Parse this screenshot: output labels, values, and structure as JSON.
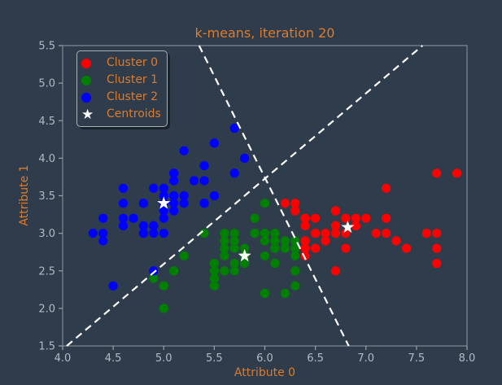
{
  "title": "k-means, iteration 20",
  "axes": {
    "x_label": "Attribute 0",
    "y_label": "Attribute 1",
    "x_ticks": [
      "4.0",
      "4.5",
      "5.0",
      "5.5",
      "6.0",
      "6.5",
      "7.0",
      "7.5",
      "8.0"
    ],
    "y_ticks": [
      "1.5",
      "2.0",
      "2.5",
      "3.0",
      "3.5",
      "4.0",
      "4.5",
      "5.0",
      "5.5"
    ]
  },
  "legend": {
    "items": [
      {
        "label": "Cluster 0",
        "marker": "dot",
        "color": "#ff0000"
      },
      {
        "label": "Cluster 1",
        "marker": "dot",
        "color": "#008000"
      },
      {
        "label": "Cluster 2",
        "marker": "dot",
        "color": "#0000ff"
      },
      {
        "label": "Centroids",
        "marker": "star",
        "color": "#ffffff"
      }
    ]
  },
  "colors": {
    "background": "#2e3c4b",
    "text_orange": "#df7b2a",
    "tick_label": "#b3bac2",
    "spine": "#7e8893",
    "tick": "#9aa3ab",
    "boundary": "#ffffff"
  },
  "chart_data": {
    "type": "scatter",
    "title": "k-means, iteration 20",
    "xlabel": "Attribute 0",
    "ylabel": "Attribute 1",
    "xlim": [
      4.0,
      8.0
    ],
    "ylim": [
      1.5,
      5.5
    ],
    "grid": false,
    "legend_position": "upper left",
    "series": [
      {
        "name": "Cluster 0",
        "marker": "dot",
        "color": "#ff0000",
        "points": [
          [
            7.0,
            3.2
          ],
          [
            6.4,
            3.2
          ],
          [
            6.9,
            3.1
          ],
          [
            6.5,
            2.8
          ],
          [
            6.3,
            3.3
          ],
          [
            6.6,
            2.9
          ],
          [
            6.7,
            3.1
          ],
          [
            6.4,
            2.9
          ],
          [
            6.6,
            3.0
          ],
          [
            6.8,
            2.8
          ],
          [
            6.7,
            3.0
          ],
          [
            6.7,
            3.1
          ],
          [
            6.3,
            3.3
          ],
          [
            7.1,
            3.0
          ],
          [
            6.5,
            3.0
          ],
          [
            7.6,
            3.0
          ],
          [
            7.3,
            2.9
          ],
          [
            6.7,
            2.5
          ],
          [
            7.2,
            3.6
          ],
          [
            6.5,
            3.2
          ],
          [
            6.4,
            2.7
          ],
          [
            6.8,
            3.0
          ],
          [
            6.4,
            3.2
          ],
          [
            6.5,
            3.0
          ],
          [
            7.7,
            3.8
          ],
          [
            7.7,
            2.6
          ],
          [
            6.9,
            3.2
          ],
          [
            7.7,
            2.8
          ],
          [
            6.7,
            3.3
          ],
          [
            7.2,
            3.2
          ],
          [
            6.4,
            2.8
          ],
          [
            7.2,
            3.0
          ],
          [
            7.4,
            2.8
          ],
          [
            7.9,
            3.8
          ],
          [
            6.4,
            2.8
          ],
          [
            7.7,
            3.0
          ],
          [
            6.3,
            3.4
          ],
          [
            6.4,
            3.1
          ],
          [
            6.9,
            3.1
          ],
          [
            6.7,
            3.1
          ],
          [
            6.9,
            3.1
          ],
          [
            6.8,
            3.2
          ],
          [
            6.7,
            3.3
          ],
          [
            6.7,
            3.0
          ],
          [
            6.5,
            3.0
          ],
          [
            6.2,
            3.4
          ]
        ]
      },
      {
        "name": "Cluster 1",
        "marker": "dot",
        "color": "#008000",
        "points": [
          [
            5.5,
            2.3
          ],
          [
            5.7,
            2.8
          ],
          [
            4.9,
            2.4
          ],
          [
            5.2,
            2.7
          ],
          [
            5.0,
            2.0
          ],
          [
            5.9,
            3.0
          ],
          [
            6.0,
            2.2
          ],
          [
            6.1,
            2.9
          ],
          [
            5.6,
            2.9
          ],
          [
            5.6,
            3.0
          ],
          [
            5.8,
            2.7
          ],
          [
            6.2,
            2.2
          ],
          [
            5.6,
            2.5
          ],
          [
            5.9,
            3.2
          ],
          [
            6.1,
            2.8
          ],
          [
            6.3,
            2.5
          ],
          [
            6.1,
            2.8
          ],
          [
            6.0,
            2.9
          ],
          [
            5.7,
            2.6
          ],
          [
            5.5,
            2.4
          ],
          [
            5.5,
            2.4
          ],
          [
            5.8,
            2.7
          ],
          [
            6.0,
            2.7
          ],
          [
            5.4,
            3.0
          ],
          [
            6.0,
            3.4
          ],
          [
            6.3,
            2.3
          ],
          [
            5.6,
            3.0
          ],
          [
            5.5,
            2.5
          ],
          [
            5.5,
            2.6
          ],
          [
            6.1,
            3.0
          ],
          [
            5.8,
            2.6
          ],
          [
            5.0,
            2.3
          ],
          [
            5.6,
            2.7
          ],
          [
            5.7,
            3.0
          ],
          [
            5.7,
            2.9
          ],
          [
            6.2,
            2.9
          ],
          [
            5.1,
            2.5
          ],
          [
            5.7,
            2.8
          ],
          [
            5.8,
            2.7
          ],
          [
            6.3,
            2.9
          ],
          [
            5.7,
            2.5
          ],
          [
            5.8,
            2.8
          ],
          [
            6.0,
            2.2
          ],
          [
            5.6,
            2.8
          ],
          [
            6.3,
            2.7
          ],
          [
            6.2,
            2.8
          ],
          [
            6.1,
            3.0
          ],
          [
            6.3,
            2.8
          ],
          [
            6.1,
            2.6
          ],
          [
            6.0,
            3.0
          ],
          [
            5.8,
            2.7
          ],
          [
            6.3,
            2.5
          ],
          [
            5.9,
            3.0
          ]
        ]
      },
      {
        "name": "Cluster 2",
        "marker": "dot",
        "color": "#0000ff",
        "points": [
          [
            5.1,
            3.5
          ],
          [
            4.9,
            3.0
          ],
          [
            4.7,
            3.2
          ],
          [
            4.6,
            3.1
          ],
          [
            5.0,
            3.6
          ],
          [
            5.4,
            3.9
          ],
          [
            4.6,
            3.4
          ],
          [
            5.0,
            3.4
          ],
          [
            4.4,
            2.9
          ],
          [
            4.9,
            3.1
          ],
          [
            5.4,
            3.7
          ],
          [
            4.8,
            3.4
          ],
          [
            4.8,
            3.0
          ],
          [
            4.3,
            3.0
          ],
          [
            5.8,
            4.0
          ],
          [
            5.7,
            4.4
          ],
          [
            5.4,
            3.9
          ],
          [
            5.1,
            3.5
          ],
          [
            5.7,
            3.8
          ],
          [
            5.1,
            3.8
          ],
          [
            5.4,
            3.4
          ],
          [
            5.1,
            3.7
          ],
          [
            4.6,
            3.6
          ],
          [
            5.1,
            3.3
          ],
          [
            4.8,
            3.4
          ],
          [
            5.0,
            3.0
          ],
          [
            5.0,
            3.4
          ],
          [
            5.2,
            3.5
          ],
          [
            5.2,
            3.4
          ],
          [
            4.7,
            3.2
          ],
          [
            4.8,
            3.1
          ],
          [
            5.4,
            3.4
          ],
          [
            5.2,
            4.1
          ],
          [
            5.5,
            4.2
          ],
          [
            4.9,
            3.1
          ],
          [
            5.0,
            3.2
          ],
          [
            5.5,
            3.5
          ],
          [
            4.9,
            3.6
          ],
          [
            4.4,
            3.0
          ],
          [
            5.1,
            3.4
          ],
          [
            5.0,
            3.5
          ],
          [
            4.5,
            2.3
          ],
          [
            4.4,
            3.2
          ],
          [
            5.0,
            3.5
          ],
          [
            5.1,
            3.8
          ],
          [
            4.8,
            3.0
          ],
          [
            5.1,
            3.8
          ],
          [
            4.6,
            3.2
          ],
          [
            5.3,
            3.7
          ],
          [
            5.0,
            3.3
          ],
          [
            4.9,
            2.5
          ]
        ]
      },
      {
        "name": "Centroids",
        "marker": "star",
        "color": "#ffffff",
        "points": [
          [
            6.82,
            3.08
          ],
          [
            5.8,
            2.7
          ],
          [
            5.0,
            3.4
          ]
        ]
      }
    ],
    "boundaries": [
      [
        4.04,
        1.5,
        7.56,
        5.5
      ],
      [
        5.35,
        5.5,
        6.83,
        1.5
      ]
    ]
  }
}
